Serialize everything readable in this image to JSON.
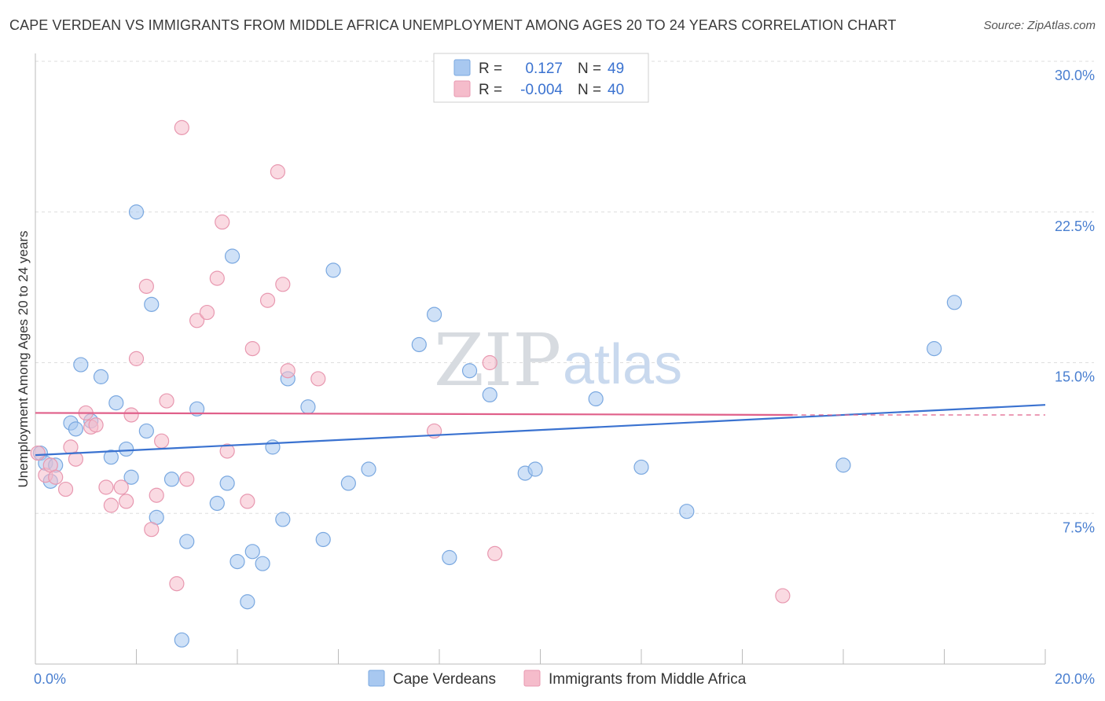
{
  "title": "CAPE VERDEAN VS IMMIGRANTS FROM MIDDLE AFRICA UNEMPLOYMENT AMONG AGES 20 TO 24 YEARS CORRELATION CHART",
  "source": "Source: ZipAtlas.com",
  "watermark": {
    "zip": "ZIP",
    "atlas": "atlas"
  },
  "legend": {
    "r_label": "R =",
    "n_label": "N =",
    "rows": [
      {
        "r": "0.127",
        "n": "49",
        "color": "#a8c8f0"
      },
      {
        "r": "-0.004",
        "n": "40",
        "color": "#f5bccb"
      }
    ]
  },
  "chart_data": {
    "type": "scatter",
    "ylabel": "Unemployment Among Ages 20 to 24 years",
    "xlim": [
      0,
      20
    ],
    "ylim": [
      0,
      30
    ],
    "x_tick_labels": [
      {
        "value": 0,
        "label": "0.0%"
      },
      {
        "value": 20,
        "label": "20.0%"
      }
    ],
    "y_ticks": [
      {
        "value": 7.5,
        "label": "7.5%"
      },
      {
        "value": 15,
        "label": "15.0%"
      },
      {
        "value": 22.5,
        "label": "22.5%"
      },
      {
        "value": 30,
        "label": "30.0%"
      }
    ],
    "series": [
      {
        "name": "Cape Verdeans",
        "color": "#a8c8f0",
        "stroke": "#7aa8e0",
        "line_color": "#3a72d0",
        "trend": {
          "x0": 0,
          "y0": 10.4,
          "x1": 20,
          "y1": 12.9
        },
        "points": [
          [
            0.1,
            10.5
          ],
          [
            0.2,
            10.0
          ],
          [
            0.3,
            9.1
          ],
          [
            0.4,
            9.9
          ],
          [
            0.7,
            12.0
          ],
          [
            0.8,
            11.7
          ],
          [
            0.9,
            14.9
          ],
          [
            1.1,
            12.1
          ],
          [
            1.3,
            14.3
          ],
          [
            1.5,
            10.3
          ],
          [
            1.6,
            13.0
          ],
          [
            1.8,
            10.7
          ],
          [
            1.9,
            9.3
          ],
          [
            2.0,
            22.5
          ],
          [
            2.2,
            11.6
          ],
          [
            2.3,
            17.9
          ],
          [
            2.4,
            7.3
          ],
          [
            2.7,
            9.2
          ],
          [
            2.9,
            1.2
          ],
          [
            3.0,
            6.1
          ],
          [
            3.2,
            12.7
          ],
          [
            3.6,
            8.0
          ],
          [
            3.8,
            9.0
          ],
          [
            3.9,
            20.3
          ],
          [
            4.0,
            5.1
          ],
          [
            4.2,
            3.1
          ],
          [
            4.3,
            5.6
          ],
          [
            4.5,
            5.0
          ],
          [
            4.7,
            10.8
          ],
          [
            4.9,
            7.2
          ],
          [
            5.0,
            14.2
          ],
          [
            5.4,
            12.8
          ],
          [
            5.7,
            6.2
          ],
          [
            5.9,
            19.6
          ],
          [
            6.2,
            9.0
          ],
          [
            6.6,
            9.7
          ],
          [
            7.6,
            15.9
          ],
          [
            7.9,
            17.4
          ],
          [
            8.2,
            5.3
          ],
          [
            8.6,
            14.6
          ],
          [
            9.0,
            13.4
          ],
          [
            9.7,
            9.5
          ],
          [
            9.9,
            9.7
          ],
          [
            11.1,
            13.2
          ],
          [
            12.0,
            9.8
          ],
          [
            12.9,
            7.6
          ],
          [
            16.0,
            9.9
          ],
          [
            17.8,
            15.7
          ],
          [
            18.2,
            18.0
          ]
        ]
      },
      {
        "name": "Immigrants from Middle Africa",
        "color": "#f5bccb",
        "stroke": "#e898b0",
        "line_color": "#e0608a",
        "trend": {
          "x0": 0,
          "y0": 12.5,
          "x1": 15,
          "y1": 12.4
        },
        "trend_dashed": {
          "x0": 15,
          "y0": 12.4,
          "x1": 20,
          "y1": 12.4
        },
        "points": [
          [
            0.05,
            10.5
          ],
          [
            0.2,
            9.4
          ],
          [
            0.3,
            9.9
          ],
          [
            0.4,
            9.3
          ],
          [
            0.6,
            8.7
          ],
          [
            0.7,
            10.8
          ],
          [
            0.8,
            10.2
          ],
          [
            1.0,
            12.5
          ],
          [
            1.1,
            11.8
          ],
          [
            1.2,
            11.9
          ],
          [
            1.4,
            8.8
          ],
          [
            1.5,
            7.9
          ],
          [
            1.7,
            8.8
          ],
          [
            1.8,
            8.1
          ],
          [
            1.9,
            12.4
          ],
          [
            2.0,
            15.2
          ],
          [
            2.2,
            18.8
          ],
          [
            2.3,
            6.7
          ],
          [
            2.4,
            8.4
          ],
          [
            2.5,
            11.1
          ],
          [
            2.6,
            13.1
          ],
          [
            2.8,
            4.0
          ],
          [
            2.9,
            26.7
          ],
          [
            3.0,
            9.2
          ],
          [
            3.2,
            17.1
          ],
          [
            3.4,
            17.5
          ],
          [
            3.6,
            19.2
          ],
          [
            3.7,
            22.0
          ],
          [
            3.8,
            10.6
          ],
          [
            4.2,
            8.1
          ],
          [
            4.3,
            15.7
          ],
          [
            4.6,
            18.1
          ],
          [
            4.8,
            24.5
          ],
          [
            4.9,
            18.9
          ],
          [
            5.0,
            14.6
          ],
          [
            5.6,
            14.2
          ],
          [
            7.9,
            11.6
          ],
          [
            9.0,
            15.0
          ],
          [
            9.1,
            5.5
          ],
          [
            14.8,
            3.4
          ]
        ]
      }
    ]
  }
}
